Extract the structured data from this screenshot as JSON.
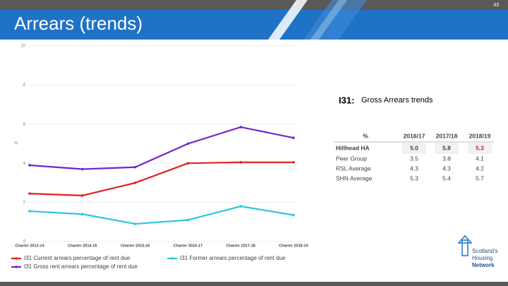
{
  "header": {
    "title": "Arrears (trends)",
    "page_number": "43"
  },
  "chart_data": {
    "type": "line",
    "y_label": "%",
    "categories": [
      "Charter 2013-14",
      "Charter 2014-15",
      "Charter 2015-16",
      "Charter 2016-17",
      "Charter 2017-18",
      "Charter 2018-19"
    ],
    "series": [
      {
        "name": "I31 Current arrears percentage of rent due",
        "color": "#e02020",
        "values": [
          2.45,
          2.35,
          3.0,
          4.0,
          4.05,
          4.05
        ]
      },
      {
        "name": "I31 Former arrears percentage of rent due",
        "color": "#2ec4e0",
        "values": [
          1.55,
          1.4,
          0.9,
          1.1,
          1.8,
          1.35
        ]
      },
      {
        "name": "I31 Gross rent arrears percentage of rent due",
        "color": "#7a20d0",
        "values": [
          3.9,
          3.7,
          3.8,
          5.0,
          5.85,
          5.3
        ]
      }
    ],
    "ylim": [
      0,
      10
    ],
    "yticks": [
      0,
      2,
      4,
      6,
      8,
      10
    ],
    "grid": true
  },
  "table": {
    "code": "I31:",
    "title": "Gross Arrears trends",
    "header": [
      "%",
      "2016/17",
      "2017/18",
      "2018/19"
    ],
    "rows": [
      [
        "Hillhead HA",
        "5.0",
        "5.8",
        "5.3"
      ],
      [
        "Peer Group",
        "3.5",
        "3.8",
        "4.1"
      ],
      [
        "RSL Average",
        "4.3",
        "4.3",
        "4.2"
      ],
      [
        "SHN Average",
        "5.3",
        "5.4",
        "5.7"
      ]
    ]
  },
  "logo": {
    "line1": "Scotland's",
    "line2": "Housing",
    "line3": "Network"
  }
}
